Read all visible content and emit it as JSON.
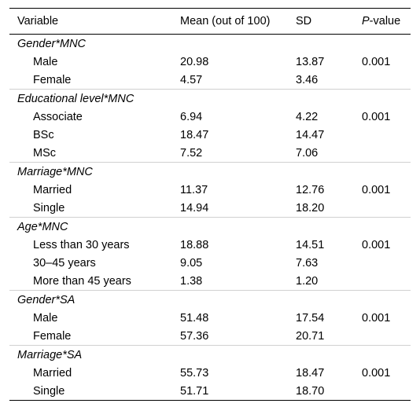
{
  "headers": {
    "variable": "Variable",
    "mean": "Mean (out of 100)",
    "sd": "SD",
    "p_italic": "P",
    "p_rest": "-value"
  },
  "groups": [
    {
      "title": "Gender*MNC",
      "rows": [
        {
          "label": "Male",
          "mean": "20.98",
          "sd": "13.87",
          "p": "0.001"
        },
        {
          "label": "Female",
          "mean": "4.57",
          "sd": "3.46",
          "p": ""
        }
      ]
    },
    {
      "title": "Educational level*MNC",
      "rows": [
        {
          "label": "Associate",
          "mean": "6.94",
          "sd": "4.22",
          "p": "0.001"
        },
        {
          "label": "BSc",
          "mean": "18.47",
          "sd": "14.47",
          "p": ""
        },
        {
          "label": "MSc",
          "mean": "7.52",
          "sd": "7.06",
          "p": ""
        }
      ]
    },
    {
      "title": "Marriage*MNC",
      "rows": [
        {
          "label": "Married",
          "mean": "11.37",
          "sd": "12.76",
          "p": "0.001"
        },
        {
          "label": "Single",
          "mean": "14.94",
          "sd": "18.20",
          "p": ""
        }
      ]
    },
    {
      "title": "Age*MNC",
      "rows": [
        {
          "label": "Less than 30 years",
          "mean": "18.88",
          "sd": "14.51",
          "p": "0.001"
        },
        {
          "label": "30–45 years",
          "mean": "9.05",
          "sd": "7.63",
          "p": ""
        },
        {
          "label": "More than 45 years",
          "mean": "1.38",
          "sd": "1.20",
          "p": ""
        }
      ]
    },
    {
      "title": "Gender*SA",
      "rows": [
        {
          "label": "Male",
          "mean": "51.48",
          "sd": "17.54",
          "p": "0.001"
        },
        {
          "label": "Female",
          "mean": "57.36",
          "sd": "20.71",
          "p": ""
        }
      ]
    },
    {
      "title": "Marriage*SA",
      "rows": [
        {
          "label": "Married",
          "mean": "55.73",
          "sd": "18.47",
          "p": "0.001"
        },
        {
          "label": "Single",
          "mean": "51.71",
          "sd": "18.70",
          "p": ""
        }
      ]
    }
  ]
}
